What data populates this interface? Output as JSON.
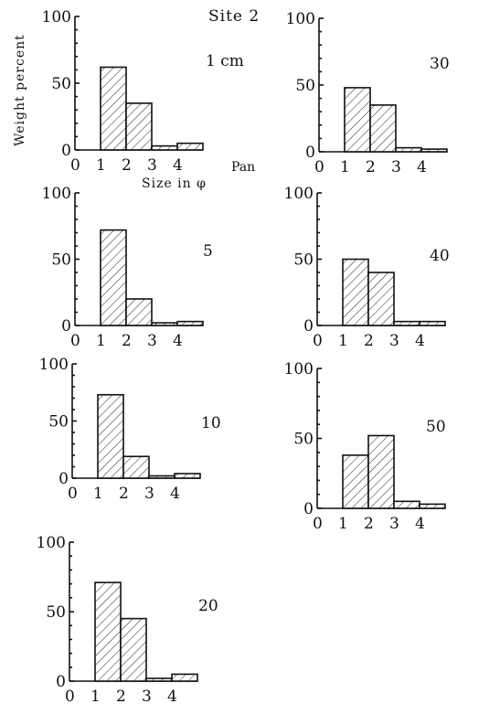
{
  "figure": {
    "site_label": "Site 2",
    "pan_label": "Pan",
    "xlabel": "Size in φ",
    "ylabel": "Weight percent"
  },
  "chart_data": [
    {
      "type": "bar",
      "depth_label": "1 cm",
      "categories": [
        "1-2",
        "2-3",
        "3-4",
        "4-Pan"
      ],
      "values": [
        62,
        35,
        3,
        5
      ],
      "x_ticks": [
        "0",
        "1",
        "2",
        "3",
        "4"
      ],
      "y_ticks": [
        "0",
        "50",
        "100"
      ],
      "xlim": [
        0,
        5
      ],
      "ylim": [
        0,
        100
      ]
    },
    {
      "type": "bar",
      "depth_label": "5",
      "categories": [
        "1-2",
        "2-3",
        "3-4",
        "4-Pan"
      ],
      "values": [
        72,
        20,
        2,
        3
      ],
      "x_ticks": [
        "0",
        "1",
        "2",
        "3",
        "4"
      ],
      "y_ticks": [
        "0",
        "50",
        "100"
      ],
      "xlim": [
        0,
        5
      ],
      "ylim": [
        0,
        100
      ]
    },
    {
      "type": "bar",
      "depth_label": "10",
      "categories": [
        "1-2",
        "2-3",
        "3-4",
        "4-Pan"
      ],
      "values": [
        73,
        19,
        2,
        4
      ],
      "x_ticks": [
        "0",
        "1",
        "2",
        "3",
        "4"
      ],
      "y_ticks": [
        "0",
        "50",
        "100"
      ],
      "xlim": [
        0,
        5
      ],
      "ylim": [
        0,
        100
      ]
    },
    {
      "type": "bar",
      "depth_label": "20",
      "categories": [
        "1-2",
        "2-3",
        "3-4",
        "4-Pan"
      ],
      "values": [
        71,
        45,
        2,
        5
      ],
      "x_ticks": [
        "0",
        "1",
        "2",
        "3",
        "4"
      ],
      "y_ticks": [
        "0",
        "50",
        "100"
      ],
      "xlim": [
        0,
        5
      ],
      "ylim": [
        0,
        100
      ]
    },
    {
      "type": "bar",
      "depth_label": "30",
      "categories": [
        "1-2",
        "2-3",
        "3-4",
        "4-Pan"
      ],
      "values": [
        48,
        35,
        3,
        2
      ],
      "x_ticks": [
        "0",
        "1",
        "2",
        "3",
        "4"
      ],
      "y_ticks": [
        "0",
        "50",
        "100"
      ],
      "xlim": [
        0,
        5
      ],
      "ylim": [
        0,
        100
      ]
    },
    {
      "type": "bar",
      "depth_label": "40",
      "categories": [
        "1-2",
        "2-3",
        "3-4",
        "4-Pan"
      ],
      "values": [
        50,
        40,
        3,
        3
      ],
      "x_ticks": [
        "0",
        "1",
        "2",
        "3",
        "4"
      ],
      "y_ticks": [
        "0",
        "50",
        "100"
      ],
      "xlim": [
        0,
        5
      ],
      "ylim": [
        0,
        100
      ]
    },
    {
      "type": "bar",
      "depth_label": "50",
      "categories": [
        "1-2",
        "2-3",
        "3-4",
        "4-Pan"
      ],
      "values": [
        38,
        52,
        5,
        3
      ],
      "x_ticks": [
        "0",
        "1",
        "2",
        "3",
        "4"
      ],
      "y_ticks": [
        "0",
        "50",
        "100"
      ],
      "xlim": [
        0,
        5
      ],
      "ylim": [
        0,
        100
      ]
    }
  ]
}
